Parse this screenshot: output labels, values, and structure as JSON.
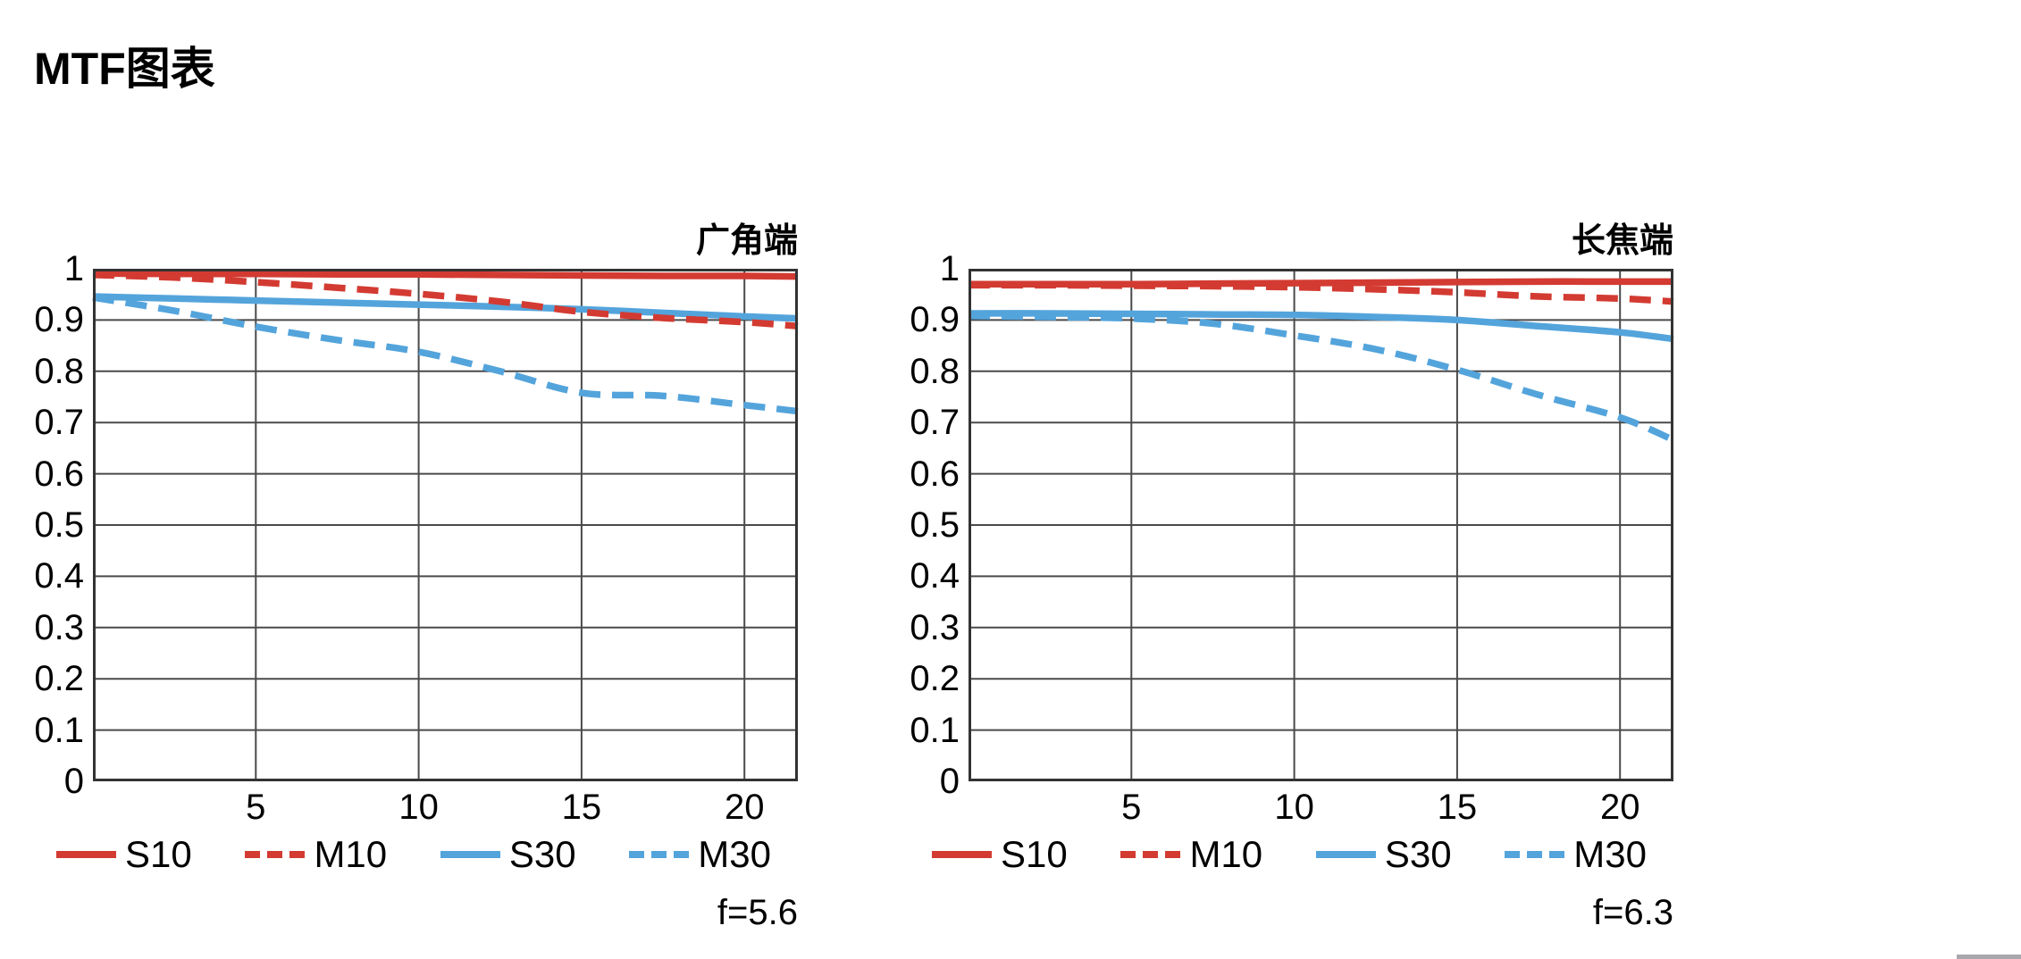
{
  "page_title": "MTF图表",
  "palette": {
    "red": "#d33b32",
    "blue": "#54a4dc",
    "grid": "#4a4a4a",
    "border": "#333333",
    "text": "#000000",
    "sliver_gray": "#a8a8ae"
  },
  "chart_data": [
    {
      "type": "line",
      "corner_label": "广角端",
      "f_label": "f=5.6",
      "x_range": [
        0,
        21.64
      ],
      "y_range": [
        0,
        1
      ],
      "grid": true,
      "x_tick_labels": [
        "5",
        "10",
        "15",
        "20"
      ],
      "x_tick_values": [
        5,
        10,
        15,
        20
      ],
      "y_tick_labels": [
        "1",
        "0.9",
        "0.8",
        "0.7",
        "0.6",
        "0.5",
        "0.4",
        "0.3",
        "0.2",
        "0.1",
        "0"
      ],
      "y_tick_values": [
        1,
        0.9,
        0.8,
        0.7,
        0.6,
        0.5,
        0.4,
        0.3,
        0.2,
        0.1,
        0
      ],
      "x": [
        0,
        2.5,
        5,
        7.5,
        10,
        12.5,
        15,
        17.5,
        20,
        21.64
      ],
      "series": [
        {
          "name": "S10",
          "color": "red",
          "style": "solid",
          "values": [
            0.991,
            0.99,
            0.99,
            0.989,
            0.989,
            0.988,
            0.987,
            0.986,
            0.986,
            0.985
          ]
        },
        {
          "name": "M10",
          "color": "red",
          "style": "dashed",
          "values": [
            0.988,
            0.983,
            0.974,
            0.963,
            0.951,
            0.936,
            0.916,
            0.904,
            0.896,
            0.888
          ]
        },
        {
          "name": "S30",
          "color": "blue",
          "style": "solid",
          "values": [
            0.946,
            0.942,
            0.938,
            0.934,
            0.93,
            0.926,
            0.921,
            0.914,
            0.907,
            0.903
          ]
        },
        {
          "name": "M30",
          "color": "blue",
          "style": "dashed",
          "values": [
            0.944,
            0.918,
            0.887,
            0.861,
            0.838,
            0.8,
            0.758,
            0.752,
            0.734,
            0.722
          ]
        }
      ]
    },
    {
      "type": "line",
      "corner_label": "长焦端",
      "f_label": "f=6.3",
      "x_range": [
        0,
        21.64
      ],
      "y_range": [
        0,
        1
      ],
      "grid": true,
      "x_tick_labels": [
        "5",
        "10",
        "15",
        "20"
      ],
      "x_tick_values": [
        5,
        10,
        15,
        20
      ],
      "y_tick_labels": [
        "1",
        "0.9",
        "0.8",
        "0.7",
        "0.6",
        "0.5",
        "0.4",
        "0.3",
        "0.2",
        "0.1",
        "0"
      ],
      "y_tick_values": [
        1,
        0.9,
        0.8,
        0.7,
        0.6,
        0.5,
        0.4,
        0.3,
        0.2,
        0.1,
        0
      ],
      "x": [
        0,
        2.5,
        5,
        7.5,
        10,
        12.5,
        15,
        17.5,
        20,
        21.64
      ],
      "series": [
        {
          "name": "S10",
          "color": "red",
          "style": "solid",
          "values": [
            0.97,
            0.97,
            0.97,
            0.971,
            0.972,
            0.973,
            0.974,
            0.975,
            0.975,
            0.975
          ]
        },
        {
          "name": "M10",
          "color": "red",
          "style": "dashed",
          "values": [
            0.968,
            0.968,
            0.967,
            0.966,
            0.964,
            0.96,
            0.954,
            0.946,
            0.942,
            0.936
          ]
        },
        {
          "name": "S30",
          "color": "blue",
          "style": "solid",
          "values": [
            0.913,
            0.913,
            0.912,
            0.911,
            0.91,
            0.906,
            0.9,
            0.888,
            0.876,
            0.863
          ]
        },
        {
          "name": "M30",
          "color": "blue",
          "style": "dashed",
          "values": [
            0.908,
            0.906,
            0.903,
            0.893,
            0.87,
            0.843,
            0.803,
            0.754,
            0.71,
            0.666
          ]
        }
      ]
    }
  ]
}
